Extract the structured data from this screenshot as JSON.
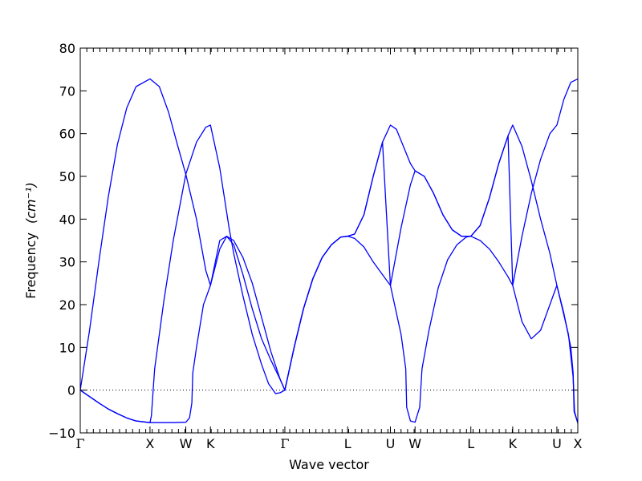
{
  "chart_data": {
    "type": "line",
    "xlabel": "Wave vector",
    "ylabel": "Frequency",
    "ylabel_unit": "(cm⁻¹)",
    "ylim": [
      -10,
      80
    ],
    "yticks": [
      -10,
      0,
      10,
      20,
      30,
      40,
      50,
      60,
      70,
      80
    ],
    "zero_line": true,
    "grid": false,
    "line_color": "#0000ff",
    "xlim": [
      0,
      10.7
    ],
    "high_symmetry_points": [
      {
        "label": "Γ",
        "x": 0
      },
      {
        "label": "X",
        "x": 1.5
      },
      {
        "label": "W",
        "x": 2.27
      },
      {
        "label": "K",
        "x": 2.8
      },
      {
        "label": "Γ",
        "x": 4.4
      },
      {
        "label": "L",
        "x": 5.75
      },
      {
        "label": "U",
        "x": 6.67
      },
      {
        "label": "W",
        "x": 7.2
      },
      {
        "label": "L",
        "x": 8.4
      },
      {
        "label": "K",
        "x": 9.3
      },
      {
        "label": "U",
        "x": 10.25
      },
      {
        "label": "X",
        "x": 10.7
      }
    ],
    "series": [
      {
        "values": [
          [
            0,
            0
          ],
          [
            0.2,
            14
          ],
          [
            0.4,
            30
          ],
          [
            0.6,
            45
          ],
          [
            0.8,
            57.5
          ],
          [
            1.0,
            66
          ],
          [
            1.2,
            71
          ],
          [
            1.5,
            72.8
          ],
          [
            1.7,
            71
          ],
          [
            1.9,
            65
          ],
          [
            2.1,
            57
          ],
          [
            2.27,
            50.5
          ],
          [
            2.5,
            40
          ],
          [
            2.7,
            28
          ],
          [
            2.8,
            24.5
          ],
          [
            3.0,
            35
          ],
          [
            3.15,
            36
          ],
          [
            3.3,
            34
          ],
          [
            3.5,
            27
          ],
          [
            3.7,
            19
          ],
          [
            3.9,
            12
          ],
          [
            4.1,
            7
          ],
          [
            4.3,
            2.5
          ],
          [
            4.4,
            0
          ],
          [
            4.6,
            10
          ],
          [
            4.8,
            19
          ],
          [
            5.0,
            26
          ],
          [
            5.2,
            31
          ],
          [
            5.4,
            34
          ],
          [
            5.6,
            35.8
          ],
          [
            5.75,
            36
          ],
          [
            5.9,
            35.5
          ],
          [
            6.1,
            33.5
          ],
          [
            6.3,
            30
          ],
          [
            6.5,
            27
          ],
          [
            6.67,
            24.5
          ],
          [
            6.9,
            13
          ],
          [
            7.0,
            5
          ],
          [
            7.02,
            -4
          ],
          [
            7.1,
            -7.2
          ],
          [
            7.2,
            -7.5
          ],
          [
            7.3,
            -4
          ],
          [
            7.35,
            5
          ],
          [
            7.5,
            14
          ],
          [
            7.7,
            24
          ],
          [
            7.9,
            30.5
          ],
          [
            8.1,
            34
          ],
          [
            8.3,
            35.8
          ],
          [
            8.4,
            36
          ],
          [
            8.6,
            35
          ],
          [
            8.8,
            33
          ],
          [
            9.0,
            30
          ],
          [
            9.2,
            26.5
          ],
          [
            9.3,
            24.5
          ],
          [
            9.5,
            16
          ],
          [
            9.7,
            12
          ],
          [
            9.9,
            14
          ],
          [
            10.1,
            20
          ],
          [
            10.25,
            24.5
          ],
          [
            10.4,
            18
          ],
          [
            10.55,
            10
          ],
          [
            10.6,
            4
          ],
          [
            10.62,
            -5
          ],
          [
            10.7,
            -7.7
          ]
        ]
      },
      {
        "values": [
          [
            0,
            0
          ],
          [
            0.2,
            -1.5
          ],
          [
            0.4,
            -3
          ],
          [
            0.6,
            -4.4
          ],
          [
            0.8,
            -5.5
          ],
          [
            1.0,
            -6.5
          ],
          [
            1.2,
            -7.2
          ],
          [
            1.5,
            -7.6
          ],
          [
            1.53,
            -6
          ],
          [
            1.6,
            5
          ],
          [
            1.8,
            21
          ],
          [
            2.0,
            35
          ],
          [
            2.27,
            50.5
          ],
          [
            2.5,
            58
          ],
          [
            2.7,
            61.5
          ],
          [
            2.8,
            62
          ],
          [
            3.0,
            52
          ],
          [
            3.2,
            38
          ],
          [
            3.3,
            32
          ],
          [
            3.5,
            22
          ],
          [
            3.7,
            13
          ],
          [
            3.9,
            6
          ],
          [
            4.05,
            1.5
          ],
          [
            4.2,
            -0.8
          ],
          [
            4.3,
            -0.6
          ],
          [
            4.4,
            0
          ],
          [
            4.6,
            10
          ],
          [
            4.8,
            19
          ],
          [
            5.0,
            26
          ],
          [
            5.2,
            31
          ],
          [
            5.4,
            34
          ],
          [
            5.6,
            35.8
          ],
          [
            5.75,
            36
          ],
          [
            5.9,
            36.5
          ],
          [
            6.1,
            41
          ],
          [
            6.3,
            50
          ],
          [
            6.5,
            58
          ],
          [
            6.67,
            62
          ],
          [
            6.8,
            61
          ],
          [
            6.95,
            57
          ],
          [
            7.1,
            53
          ],
          [
            7.2,
            51.3
          ],
          [
            7.4,
            50
          ],
          [
            7.6,
            46
          ],
          [
            7.8,
            41
          ],
          [
            8.0,
            37.5
          ],
          [
            8.2,
            36
          ],
          [
            8.4,
            36
          ],
          [
            8.6,
            38.5
          ],
          [
            8.8,
            45
          ],
          [
            9.0,
            53
          ],
          [
            9.2,
            59.5
          ],
          [
            9.3,
            62
          ],
          [
            9.5,
            57
          ],
          [
            9.7,
            49
          ],
          [
            9.9,
            40
          ],
          [
            10.1,
            32
          ],
          [
            10.25,
            24.5
          ],
          [
            10.5,
            13
          ],
          [
            10.6,
            3
          ],
          [
            10.63,
            -5
          ],
          [
            10.7,
            -7.7
          ]
        ]
      },
      {
        "values": [
          [
            0,
            0
          ],
          [
            0.2,
            -1.5
          ],
          [
            0.4,
            -3
          ],
          [
            0.6,
            -4.4
          ],
          [
            0.8,
            -5.5
          ],
          [
            1.0,
            -6.5
          ],
          [
            1.2,
            -7.2
          ],
          [
            1.5,
            -7.6
          ],
          [
            1.8,
            -7.6
          ],
          [
            2.0,
            -7.6
          ],
          [
            2.27,
            -7.5
          ],
          [
            2.35,
            -6.5
          ],
          [
            2.4,
            -3
          ],
          [
            2.42,
            4
          ],
          [
            2.5,
            10
          ],
          [
            2.65,
            20
          ],
          [
            2.8,
            24.5
          ],
          [
            3.0,
            33
          ],
          [
            3.15,
            36
          ],
          [
            3.3,
            35
          ],
          [
            3.5,
            31
          ],
          [
            3.7,
            25
          ],
          [
            3.9,
            17
          ],
          [
            4.1,
            9
          ],
          [
            4.3,
            2.5
          ],
          [
            4.4,
            0
          ],
          [
            4.6,
            10
          ],
          [
            4.8,
            19
          ],
          [
            5.0,
            26
          ],
          [
            5.2,
            31
          ],
          [
            5.4,
            34
          ],
          [
            5.6,
            35.8
          ],
          [
            5.75,
            36
          ],
          [
            5.9,
            36.5
          ],
          [
            6.1,
            41
          ],
          [
            6.3,
            50
          ],
          [
            6.5,
            58
          ],
          [
            6.67,
            24.5
          ],
          [
            6.9,
            38
          ],
          [
            7.1,
            48
          ],
          [
            7.2,
            51.3
          ],
          [
            7.4,
            50
          ],
          [
            7.6,
            46
          ],
          [
            7.8,
            41
          ],
          [
            8.0,
            37.5
          ],
          [
            8.2,
            36
          ],
          [
            8.4,
            36
          ],
          [
            8.6,
            38.5
          ],
          [
            8.8,
            45
          ],
          [
            9.0,
            53
          ],
          [
            9.2,
            59.5
          ],
          [
            9.3,
            24.5
          ],
          [
            9.5,
            36
          ],
          [
            9.7,
            46
          ],
          [
            9.9,
            54
          ],
          [
            10.1,
            60
          ],
          [
            10.25,
            62
          ],
          [
            10.4,
            68
          ],
          [
            10.55,
            72
          ],
          [
            10.7,
            72.8
          ]
        ]
      }
    ]
  }
}
